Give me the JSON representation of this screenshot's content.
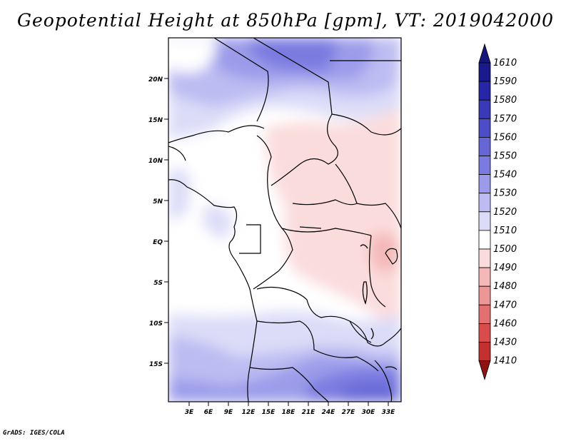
{
  "title": "Geopotential Height at 850hPa [gpm], VT: 2019042000",
  "credit": "GrADS: IGES/COLA",
  "map": {
    "lon_labels": [
      "3E",
      "6E",
      "9E",
      "12E",
      "15E",
      "18E",
      "21E",
      "24E",
      "27E",
      "30E",
      "33E"
    ],
    "lat_labels": [
      "20N",
      "15N",
      "10N",
      "5N",
      "EQ",
      "5S",
      "10S",
      "15S"
    ]
  },
  "colorbar": {
    "levels": [
      "1610",
      "1590",
      "1580",
      "1570",
      "1560",
      "1550",
      "1540",
      "1530",
      "1520",
      "1510",
      "1500",
      "1490",
      "1480",
      "1470",
      "1460",
      "1430",
      "1410"
    ],
    "colors": [
      "#1a1a8c",
      "#2626a6",
      "#3a3ab8",
      "#4d4dc8",
      "#6666d6",
      "#7a7ae0",
      "#9b9bea",
      "#bcbcf2",
      "#dcdcf8",
      "#ffffff",
      "#fbdcdc",
      "#f4b8b8",
      "#ec9696",
      "#e27070",
      "#d84c4c",
      "#c43030",
      "#a01a1a"
    ],
    "top_color": "#15157a",
    "bottom_color": "#8e1414"
  }
}
